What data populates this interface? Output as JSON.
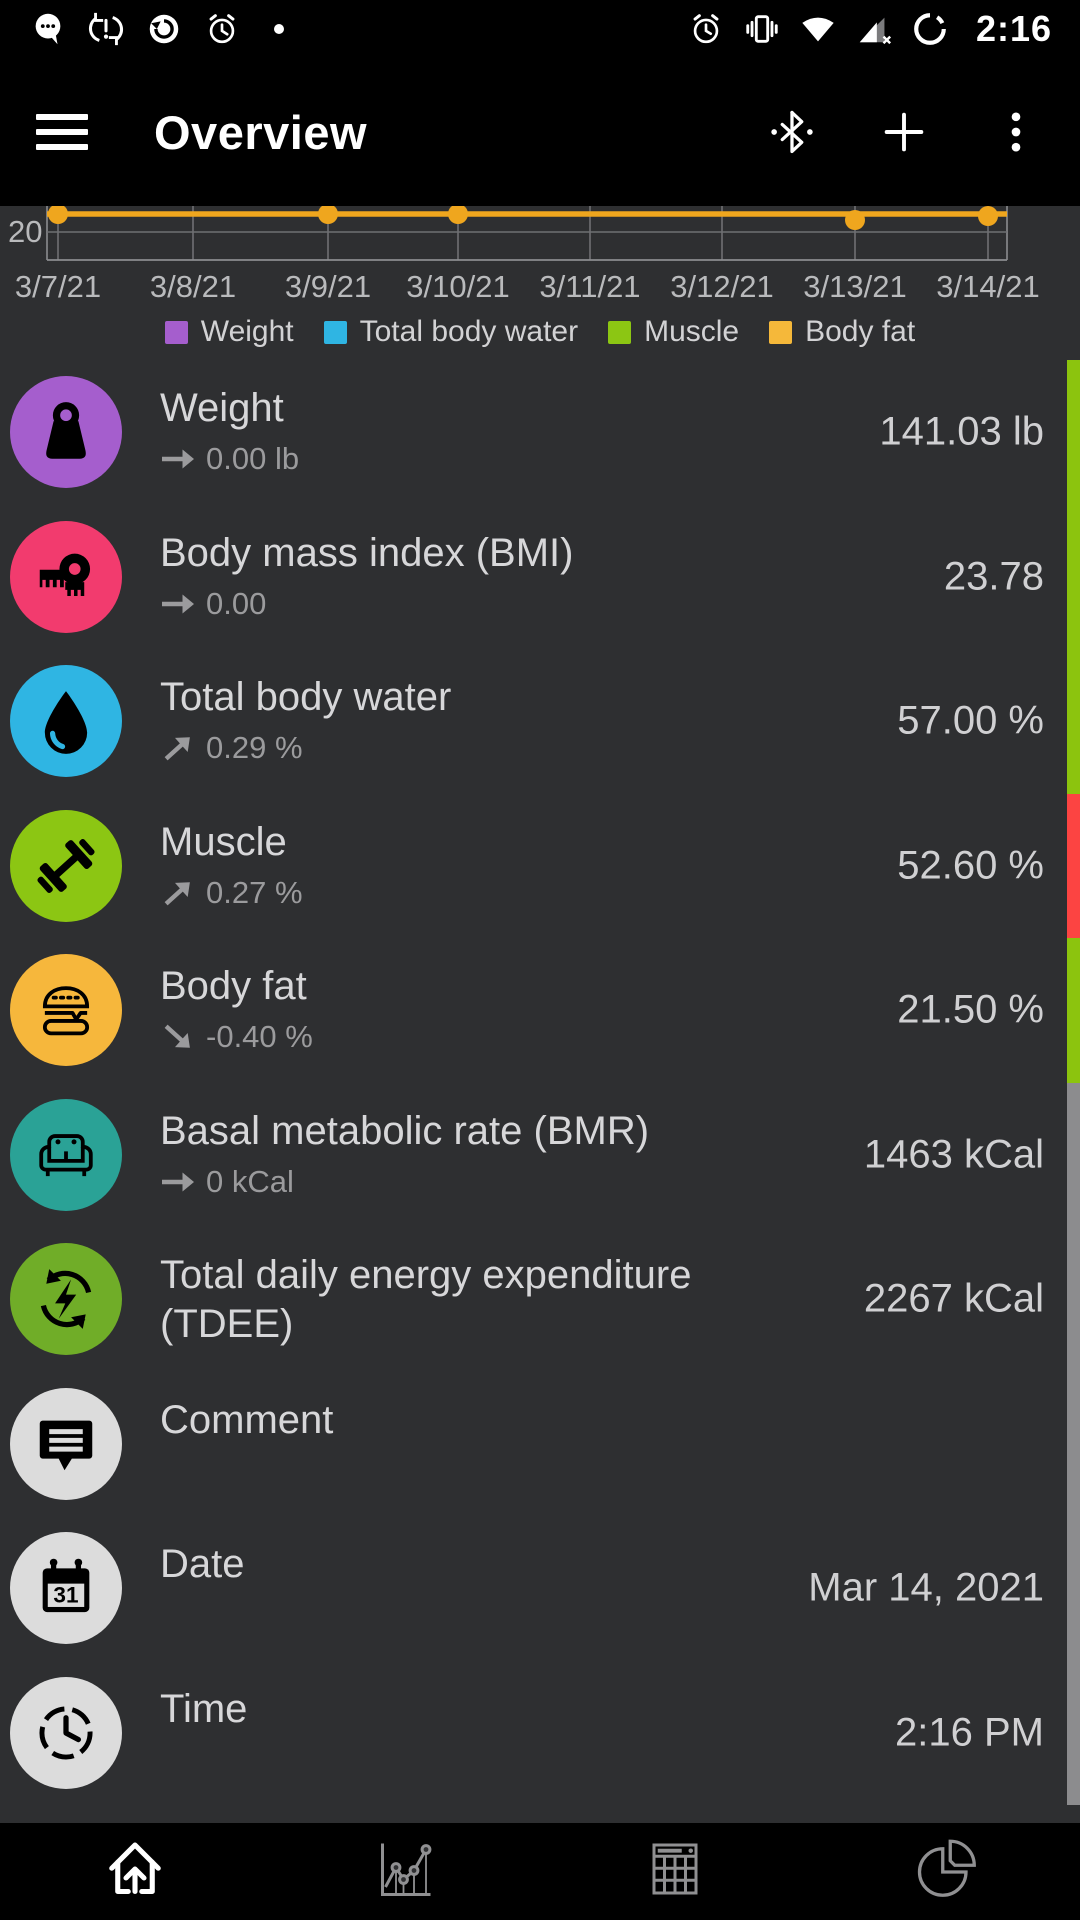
{
  "status_bar": {
    "time": "2:16",
    "left_icons": [
      "chat-bubble",
      "sync-problem",
      "update-circle",
      "alarm",
      "notification-dot"
    ],
    "right_icons": [
      "alarm",
      "vibrate",
      "wifi",
      "cell-signal-no-internet",
      "data-saver"
    ]
  },
  "app_bar": {
    "title": "Overview",
    "actions": [
      "menu",
      "bluetooth",
      "add-measurement",
      "overflow-menu"
    ]
  },
  "chart": {
    "type": "line",
    "x_labels": [
      "3/7/21",
      "3/8/21",
      "3/9/21",
      "3/10/21",
      "3/11/21",
      "3/12/21",
      "3/13/21",
      "3/14/21"
    ],
    "y_tick_label": "20",
    "visible_series": {
      "name": "Body fat",
      "color": "#efa61e",
      "approx_values": [
        21.5,
        21.5,
        21.5,
        21.5,
        21.5,
        21.5,
        21.4,
        21.5
      ],
      "marker_day_indexes": [
        0,
        2,
        3,
        6,
        7
      ]
    },
    "note_cropped": "top of chart hidden behind app bar",
    "legend": [
      {
        "label": "Weight",
        "color": "#a55ecd"
      },
      {
        "label": "Total body water",
        "color": "#2fb5e3"
      },
      {
        "label": "Muscle",
        "color": "#8cc613"
      },
      {
        "label": "Body fat",
        "color": "#f5b83a"
      }
    ]
  },
  "rows": [
    {
      "id": "weight",
      "icon": "weight-kettlebell-icon",
      "icon_bg": "#a55ecd",
      "title": "Weight",
      "trend": "flat",
      "trend_text": "0.00 lb",
      "value": "141.03 lb",
      "indicator_color": "#8cc40e"
    },
    {
      "id": "bmi",
      "icon": "measuring-tape-icon",
      "icon_bg": "#f23b6e",
      "title": "Body mass index (BMI)",
      "trend": "flat",
      "trend_text": "0.00",
      "value": "23.78",
      "indicator_color": "#8cc40e"
    },
    {
      "id": "total-body-water",
      "icon": "water-drop-icon",
      "icon_bg": "#2fb5e3",
      "title": "Total body water",
      "trend": "up",
      "trend_text": "0.29 %",
      "value": "57.00 %",
      "indicator_color": "#8cc40e"
    },
    {
      "id": "muscle",
      "icon": "dumbbell-icon",
      "icon_bg": "#8cc613",
      "title": "Muscle",
      "trend": "up",
      "trend_text": "0.27 %",
      "value": "52.60 %",
      "indicator_color": "#fc4442"
    },
    {
      "id": "body-fat",
      "icon": "burger-icon",
      "icon_bg": "#f6b73c",
      "title": "Body fat",
      "trend": "down",
      "trend_text": "-0.40 %",
      "value": "21.50 %",
      "indicator_color": "#8cc40e"
    },
    {
      "id": "bmr",
      "icon": "couch-icon",
      "icon_bg": "#2aa296",
      "title": "Basal metabolic rate (BMR)",
      "trend": "flat",
      "trend_text": "0 kCal",
      "value": "1463 kCal",
      "indicator_color": "#8c8c8e"
    },
    {
      "id": "tdee",
      "icon": "energy-cycle-icon",
      "icon_bg": "#70ad28",
      "title": "Total daily energy expenditure (TDEE)",
      "trend": null,
      "trend_text": null,
      "value": "2267 kCal",
      "indicator_color": "#8c8c8e"
    },
    {
      "id": "comment",
      "icon": "comment-bubble-icon",
      "icon_bg": "#dcdcdc",
      "title": "Comment",
      "trend": null,
      "trend_text": null,
      "value": null,
      "indicator_color": "#8c8c8e"
    },
    {
      "id": "date",
      "icon": "calendar-icon",
      "icon_bg": "#dcdcdc",
      "title": "Date",
      "trend": null,
      "trend_text": null,
      "value": "Mar 14, 2021",
      "indicator_color": "#8c8c8e"
    },
    {
      "id": "time",
      "icon": "clock-icon",
      "icon_bg": "#dcdcdc",
      "title": "Time",
      "trend": null,
      "trend_text": null,
      "value": "2:16 PM",
      "indicator_color": "#8c8c8e"
    }
  ],
  "bottom_nav": [
    {
      "id": "overview",
      "icon": "home-icon",
      "active": true
    },
    {
      "id": "graph",
      "icon": "line-chart-icon",
      "active": false
    },
    {
      "id": "table",
      "icon": "table-icon",
      "active": false
    },
    {
      "id": "statistics",
      "icon": "pie-chart-icon",
      "active": false
    }
  ],
  "colors": {
    "background": "#2e2f31",
    "bar_background": "#000000",
    "title_text": "#d7d7d9",
    "value_text": "#d0d0d2",
    "sub_text": "#9b9b9d",
    "axis_text": "#b9babc",
    "gridline": "#6f7073",
    "chart_line": "#efa61e",
    "indicator_good": "#8cc40e",
    "indicator_bad": "#fc4442",
    "indicator_neutral": "#8c8c8e"
  }
}
